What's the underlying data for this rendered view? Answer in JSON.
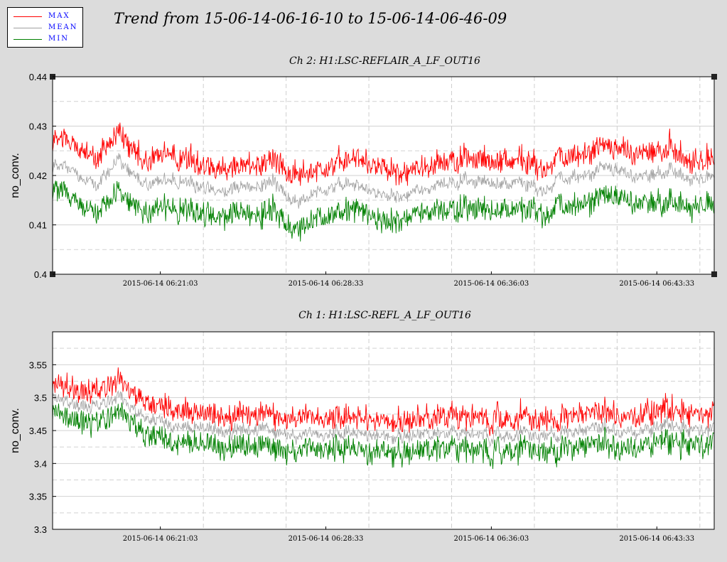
{
  "title": "Trend from 15-06-14-06-16-10 to 15-06-14-06-46-09",
  "legend": [
    {
      "label": "MAX",
      "color": "#ff0000"
    },
    {
      "label": "MEAN",
      "color": "#a0a0a0"
    },
    {
      "label": "MIN",
      "color": "#008000"
    }
  ],
  "chart_data": [
    {
      "type": "line",
      "title": "Ch 2: H1:LSC-REFLAIR_A_LF_OUT16",
      "ylabel": "no_conv.",
      "xlabel": "",
      "ylim": [
        0.4,
        0.44
      ],
      "yticks": [
        0.4,
        0.41,
        0.42,
        0.43,
        0.44
      ],
      "ytick_labels": [
        "0.4",
        "0.41",
        "0.42",
        "0.43",
        "0.44"
      ],
      "xlim": [
        "2015-06-14 06:16:10",
        "2015-06-14 06:46:09"
      ],
      "xticks": [
        "2015-06-14 06:21:03",
        "2015-06-14 06:28:33",
        "2015-06-14 06:36:03",
        "2015-06-14 06:43:33"
      ],
      "grid": true,
      "legend_position": "top-left",
      "x": [
        "06:16:10",
        "06:17:10",
        "06:18:10",
        "06:19:10",
        "06:20:10",
        "06:21:10",
        "06:22:10",
        "06:23:10",
        "06:24:10",
        "06:25:10",
        "06:26:10",
        "06:27:10",
        "06:28:10",
        "06:29:10",
        "06:30:10",
        "06:31:10",
        "06:32:10",
        "06:33:10",
        "06:34:10",
        "06:35:10",
        "06:36:10",
        "06:37:10",
        "06:38:10",
        "06:39:10",
        "06:40:10",
        "06:41:10",
        "06:42:10",
        "06:43:10",
        "06:44:10",
        "06:45:10",
        "06:46:09"
      ],
      "series": [
        {
          "name": "MAX",
          "color": "#ff0000",
          "values": [
            0.427,
            0.426,
            0.423,
            0.428,
            0.422,
            0.424,
            0.423,
            0.422,
            0.421,
            0.422,
            0.423,
            0.419,
            0.421,
            0.422,
            0.423,
            0.421,
            0.42,
            0.422,
            0.423,
            0.423,
            0.422,
            0.423,
            0.421,
            0.423,
            0.424,
            0.426,
            0.424,
            0.424,
            0.425,
            0.422,
            0.423
          ]
        },
        {
          "name": "MEAN",
          "color": "#a0a0a0",
          "values": [
            0.422,
            0.421,
            0.418,
            0.423,
            0.418,
            0.419,
            0.419,
            0.418,
            0.417,
            0.418,
            0.419,
            0.414,
            0.417,
            0.418,
            0.418,
            0.416,
            0.416,
            0.418,
            0.419,
            0.419,
            0.418,
            0.419,
            0.417,
            0.419,
            0.42,
            0.422,
            0.42,
            0.42,
            0.421,
            0.419,
            0.42
          ]
        },
        {
          "name": "MIN",
          "color": "#008000",
          "values": [
            0.418,
            0.416,
            0.413,
            0.417,
            0.413,
            0.414,
            0.414,
            0.413,
            0.413,
            0.413,
            0.414,
            0.409,
            0.412,
            0.413,
            0.414,
            0.411,
            0.412,
            0.414,
            0.414,
            0.414,
            0.413,
            0.414,
            0.413,
            0.414,
            0.415,
            0.417,
            0.415,
            0.415,
            0.415,
            0.414,
            0.415
          ]
        }
      ]
    },
    {
      "type": "line",
      "title": "Ch 1: H1:LSC-REFL_A_LF_OUT16",
      "ylabel": "no_conv.",
      "xlabel": "",
      "ylim": [
        3.3,
        3.6
      ],
      "yticks": [
        3.3,
        3.35,
        3.4,
        3.45,
        3.5,
        3.55
      ],
      "ytick_labels": [
        "3.3",
        "3.35",
        "3.4",
        "3.45",
        "3.5",
        "3.55"
      ],
      "xlim": [
        "2015-06-14 06:16:10",
        "2015-06-14 06:46:09"
      ],
      "xticks": [
        "2015-06-14 06:21:03",
        "2015-06-14 06:28:33",
        "2015-06-14 06:36:03",
        "2015-06-14 06:43:33"
      ],
      "grid": true,
      "x": [
        "06:16:10",
        "06:17:10",
        "06:18:10",
        "06:19:10",
        "06:20:10",
        "06:21:10",
        "06:22:10",
        "06:23:10",
        "06:24:10",
        "06:25:10",
        "06:26:10",
        "06:27:10",
        "06:28:10",
        "06:29:10",
        "06:30:10",
        "06:31:10",
        "06:32:10",
        "06:33:10",
        "06:34:10",
        "06:35:10",
        "06:36:10",
        "06:37:10",
        "06:38:10",
        "06:39:10",
        "06:40:10",
        "06:41:10",
        "06:42:10",
        "06:43:10",
        "06:44:10",
        "06:45:10",
        "06:46:09"
      ],
      "series": [
        {
          "name": "MAX",
          "color": "#ff0000",
          "values": [
            3.515,
            3.51,
            3.505,
            3.52,
            3.49,
            3.48,
            3.475,
            3.47,
            3.47,
            3.47,
            3.475,
            3.46,
            3.465,
            3.465,
            3.47,
            3.455,
            3.46,
            3.465,
            3.465,
            3.465,
            3.46,
            3.465,
            3.465,
            3.465,
            3.47,
            3.475,
            3.47,
            3.47,
            3.48,
            3.47,
            3.47
          ]
        },
        {
          "name": "MEAN",
          "color": "#a0a0a0",
          "values": [
            3.5,
            3.49,
            3.485,
            3.5,
            3.47,
            3.46,
            3.455,
            3.45,
            3.45,
            3.45,
            3.455,
            3.44,
            3.445,
            3.445,
            3.45,
            3.435,
            3.44,
            3.445,
            3.445,
            3.445,
            3.44,
            3.445,
            3.445,
            3.445,
            3.45,
            3.455,
            3.45,
            3.45,
            3.46,
            3.45,
            3.45
          ]
        },
        {
          "name": "MIN",
          "color": "#008000",
          "values": [
            3.48,
            3.47,
            3.465,
            3.48,
            3.45,
            3.44,
            3.435,
            3.43,
            3.43,
            3.43,
            3.435,
            3.42,
            3.425,
            3.425,
            3.43,
            3.415,
            3.42,
            3.425,
            3.425,
            3.425,
            3.42,
            3.425,
            3.425,
            3.425,
            3.43,
            3.435,
            3.43,
            3.43,
            3.44,
            3.43,
            3.43
          ]
        }
      ]
    }
  ]
}
